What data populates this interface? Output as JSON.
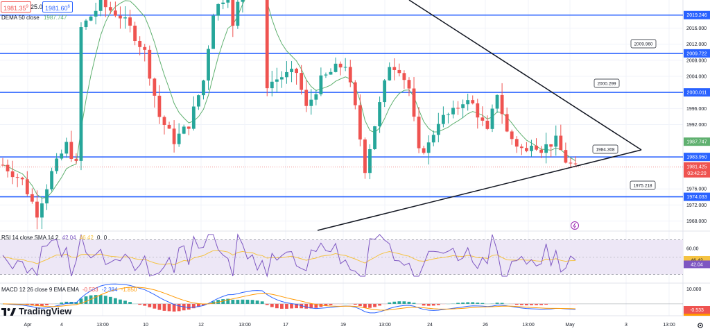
{
  "header": {
    "bid": "1981.35",
    "bid_sup": "9",
    "spread": "25.0",
    "ask": "1981.60",
    "ask_sup": "6",
    "dema_label": "DEMA 50 close",
    "dema_value": "1987.747"
  },
  "colors": {
    "up": "#26a69a",
    "down": "#ef5350",
    "dema": "#5fb06f",
    "hline": "#2962ff",
    "rsi": "#7e57c2",
    "rsi_sma": "#f5c342",
    "rsi_band_fill": "#ede7f6",
    "macd": "#2962ff",
    "signal": "#ff9800",
    "grid": "#f0f3fa",
    "axis_text": "#131722"
  },
  "chart_data": [
    {
      "type": "candlestick",
      "title": "",
      "y_axis_ticks": [
        "2016.000",
        "2012.000",
        "2008.000",
        "2004.000",
        "1996.000",
        "1992.000",
        "1976.000",
        "1972.000",
        "1968.000"
      ],
      "ylim": [
        1965.5,
        2023.0
      ],
      "x_axis_ticks": [
        "Apr",
        "4",
        "13:00",
        "10",
        "12",
        "13:00",
        "17",
        "19",
        "13:00",
        "24",
        "26",
        "13:00",
        "May",
        "3",
        "13:00"
      ],
      "horizontal_levels": [
        {
          "label": "2019.246",
          "value": 2019.246
        },
        {
          "label": "2009.722",
          "value": 2009.722
        },
        {
          "label": "2000.011",
          "value": 2000.011
        },
        {
          "label": "1983.950",
          "value": 1983.95
        },
        {
          "label": "1974.033",
          "value": 1974.033
        }
      ],
      "callouts": [
        "2009.960",
        "2000.299",
        "1984.308",
        "1975.218"
      ],
      "price_tags": [
        {
          "label": "DEMA",
          "value": "1987.747",
          "kind": "dema"
        },
        {
          "label": "Last",
          "value": "1981.425",
          "kind": "last"
        },
        {
          "label": "Countdown",
          "value": "03:42:20",
          "kind": "last"
        }
      ],
      "trendlines": [
        "descending-resistance",
        "ascending-support"
      ],
      "series": [
        {
          "name": "DEMA 50 close",
          "kind": "line"
        },
        {
          "name": "price",
          "kind": "candles"
        }
      ],
      "grid": true,
      "last_price": 1981.425
    },
    {
      "type": "line",
      "title": "RSI 14 close SMA 14 2",
      "series": [
        {
          "name": "RSI",
          "last": "42.04"
        },
        {
          "name": "SMA",
          "last": "46.42"
        }
      ],
      "y_axis_ticks": [
        "60.00"
      ],
      "ylim": [
        20,
        80
      ],
      "band": [
        30,
        70
      ],
      "header_values": [
        "42.04",
        "46.42",
        "0",
        "0"
      ]
    },
    {
      "type": "bar",
      "title": "MACD 12 26 close 9 EMA EMA",
      "header_values": [
        "-0.533",
        "-2.384",
        "-1.850"
      ],
      "y_axis_ticks": [
        "10.000"
      ],
      "series": [
        {
          "name": "Histogram",
          "last": "-0.533"
        },
        {
          "name": "MACD",
          "last": "-2.384"
        },
        {
          "name": "Signal",
          "last": "-1.850"
        }
      ]
    }
  ],
  "watermark": "TradingView",
  "footer": {
    "settings_icon": "gear-icon"
  }
}
